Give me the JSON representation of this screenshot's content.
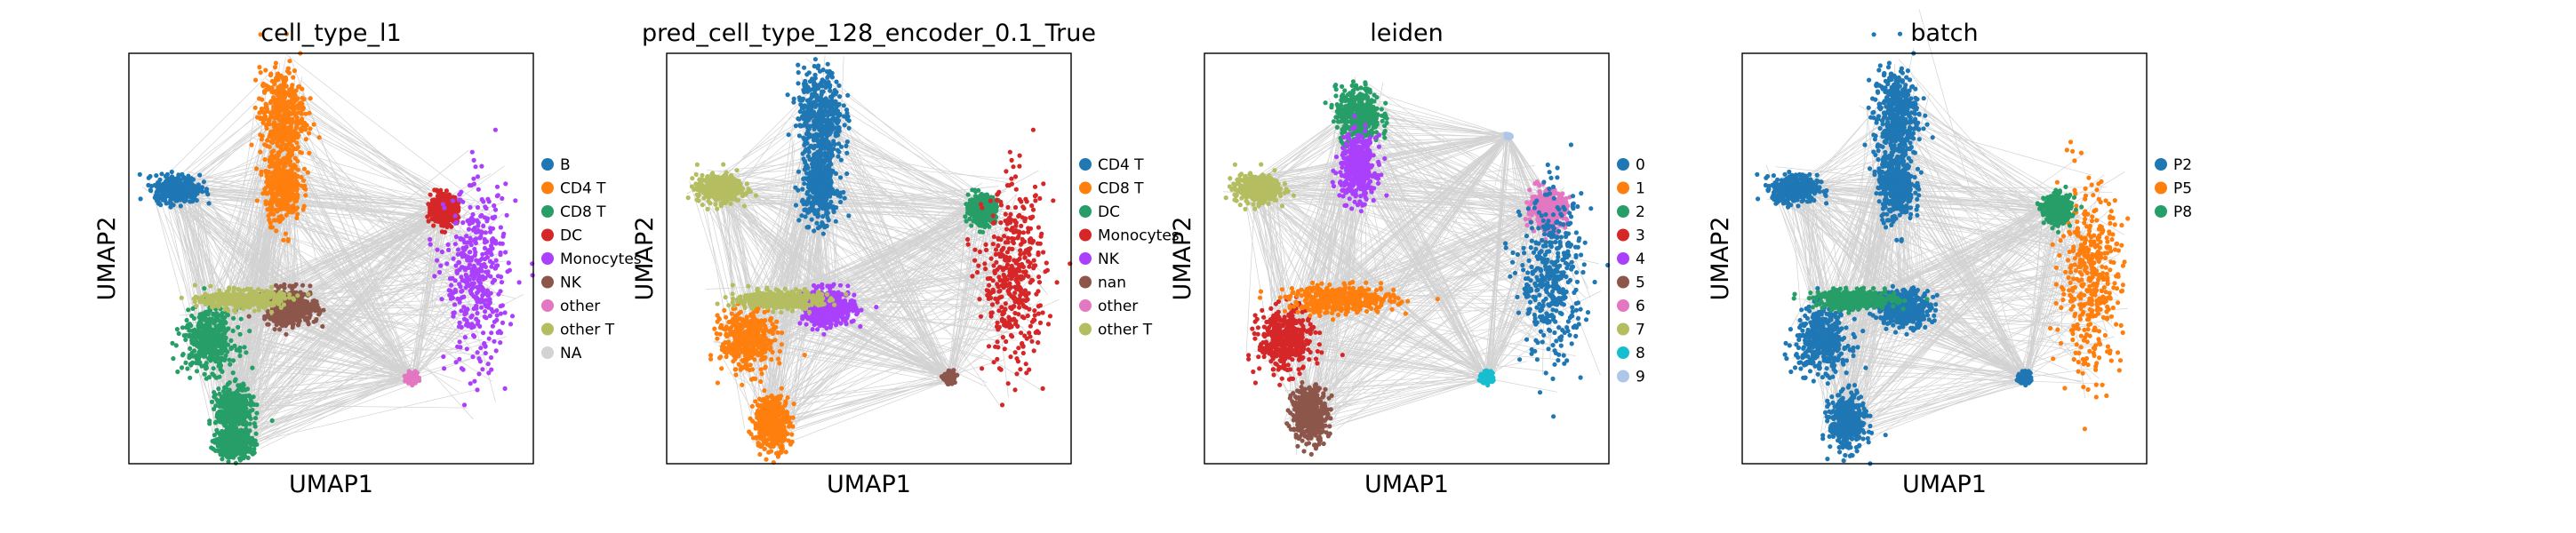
{
  "figure": {
    "background": "#ffffff"
  },
  "chart_data": [
    {
      "type": "scatter",
      "title": "cell_type_l1",
      "xlabel": "UMAP1",
      "ylabel": "UMAP2",
      "grid": false,
      "legend_position": "right",
      "legend": [
        {
          "label": "B",
          "color": "#1f77b4"
        },
        {
          "label": "CD4 T",
          "color": "#ff7f0e"
        },
        {
          "label": "CD8 T",
          "color": "#279e68"
        },
        {
          "label": "DC",
          "color": "#d62728"
        },
        {
          "label": "Monocytes",
          "color": "#aa40fc"
        },
        {
          "label": "NK",
          "color": "#8c564b"
        },
        {
          "label": "other",
          "color": "#e377c2"
        },
        {
          "label": "other T",
          "color": "#b5bd61"
        },
        {
          "label": "NA",
          "color": "#d3d3d3"
        }
      ],
      "clusters": [
        {
          "label": "B",
          "center": [
            0.12,
            0.67
          ],
          "spread": [
            0.05,
            0.03
          ]
        },
        {
          "label": "CD4 T",
          "center": [
            0.38,
            0.85
          ],
          "spread": [
            0.05,
            0.1
          ]
        },
        {
          "label": "CD4 T",
          "center": [
            0.38,
            0.68
          ],
          "spread": [
            0.04,
            0.08
          ]
        },
        {
          "label": "CD8 T",
          "center": [
            0.2,
            0.3
          ],
          "spread": [
            0.06,
            0.07
          ]
        },
        {
          "label": "CD8 T",
          "center": [
            0.26,
            0.13
          ],
          "spread": [
            0.04,
            0.05
          ]
        },
        {
          "label": "CD8 T",
          "center": [
            0.26,
            0.05
          ],
          "spread": [
            0.04,
            0.03
          ]
        },
        {
          "label": "DC",
          "center": [
            0.78,
            0.62
          ],
          "spread": [
            0.03,
            0.03
          ]
        },
        {
          "label": "Monocytes",
          "center": [
            0.86,
            0.45
          ],
          "spread": [
            0.07,
            0.2
          ]
        },
        {
          "label": "NK",
          "center": [
            0.4,
            0.38
          ],
          "spread": [
            0.06,
            0.04
          ]
        },
        {
          "label": "other",
          "center": [
            0.7,
            0.21
          ],
          "spread": [
            0.012,
            0.012
          ]
        },
        {
          "label": "other T",
          "center": [
            0.28,
            0.4
          ],
          "spread": [
            0.09,
            0.02
          ]
        }
      ]
    },
    {
      "type": "scatter",
      "title": "pred_cell_type_128_encoder_0.1_True",
      "xlabel": "UMAP1",
      "ylabel": "UMAP2",
      "grid": false,
      "legend_position": "right",
      "legend": [
        {
          "label": "CD4 T",
          "color": "#1f77b4"
        },
        {
          "label": "CD8 T",
          "color": "#ff7f0e"
        },
        {
          "label": "DC",
          "color": "#279e68"
        },
        {
          "label": "Monocytes",
          "color": "#d62728"
        },
        {
          "label": "NK",
          "color": "#aa40fc"
        },
        {
          "label": "nan",
          "color": "#8c564b"
        },
        {
          "label": "other",
          "color": "#e377c2"
        },
        {
          "label": "other T",
          "color": "#b5bd61"
        }
      ],
      "clusters": [
        {
          "label": "other T",
          "center": [
            0.13,
            0.67
          ],
          "spread": [
            0.05,
            0.03
          ]
        },
        {
          "label": "CD4 T",
          "center": [
            0.38,
            0.85
          ],
          "spread": [
            0.05,
            0.1
          ]
        },
        {
          "label": "CD4 T",
          "center": [
            0.38,
            0.68
          ],
          "spread": [
            0.04,
            0.08
          ]
        },
        {
          "label": "CD8 T",
          "center": [
            0.2,
            0.3
          ],
          "spread": [
            0.06,
            0.07
          ]
        },
        {
          "label": "CD8 T",
          "center": [
            0.26,
            0.1
          ],
          "spread": [
            0.04,
            0.06
          ]
        },
        {
          "label": "DC",
          "center": [
            0.78,
            0.62
          ],
          "spread": [
            0.03,
            0.03
          ]
        },
        {
          "label": "Monocytes",
          "center": [
            0.86,
            0.45
          ],
          "spread": [
            0.07,
            0.2
          ]
        },
        {
          "label": "NK",
          "center": [
            0.4,
            0.38
          ],
          "spread": [
            0.06,
            0.04
          ]
        },
        {
          "label": "other T",
          "center": [
            0.28,
            0.4
          ],
          "spread": [
            0.09,
            0.02
          ]
        },
        {
          "label": "nan",
          "center": [
            0.7,
            0.21
          ],
          "spread": [
            0.012,
            0.012
          ]
        }
      ]
    },
    {
      "type": "scatter",
      "title": "leiden",
      "xlabel": "UMAP1",
      "ylabel": "UMAP2",
      "grid": false,
      "legend_position": "right",
      "legend": [
        {
          "label": "0",
          "color": "#1f77b4"
        },
        {
          "label": "1",
          "color": "#ff7f0e"
        },
        {
          "label": "2",
          "color": "#279e68"
        },
        {
          "label": "3",
          "color": "#d62728"
        },
        {
          "label": "4",
          "color": "#aa40fc"
        },
        {
          "label": "5",
          "color": "#8c564b"
        },
        {
          "label": "6",
          "color": "#e377c2"
        },
        {
          "label": "7",
          "color": "#b5bd61"
        },
        {
          "label": "8",
          "color": "#17becf"
        },
        {
          "label": "9",
          "color": "#aec7e8"
        }
      ],
      "clusters": [
        {
          "label": "7",
          "center": [
            0.13,
            0.67
          ],
          "spread": [
            0.05,
            0.03
          ]
        },
        {
          "label": "2",
          "center": [
            0.38,
            0.85
          ],
          "spread": [
            0.05,
            0.06
          ]
        },
        {
          "label": "4",
          "center": [
            0.38,
            0.72
          ],
          "spread": [
            0.04,
            0.07
          ]
        },
        {
          "label": "3",
          "center": [
            0.2,
            0.3
          ],
          "spread": [
            0.06,
            0.07
          ]
        },
        {
          "label": "5",
          "center": [
            0.26,
            0.12
          ],
          "spread": [
            0.04,
            0.06
          ]
        },
        {
          "label": "6",
          "center": [
            0.85,
            0.62
          ],
          "spread": [
            0.04,
            0.04
          ]
        },
        {
          "label": "0",
          "center": [
            0.86,
            0.45
          ],
          "spread": [
            0.07,
            0.18
          ]
        },
        {
          "label": "1",
          "center": [
            0.34,
            0.4
          ],
          "spread": [
            0.12,
            0.03
          ]
        },
        {
          "label": "8",
          "center": [
            0.7,
            0.21
          ],
          "spread": [
            0.012,
            0.012
          ]
        },
        {
          "label": "9",
          "center": [
            0.75,
            0.8
          ],
          "spread": [
            0.006,
            0.006
          ]
        }
      ]
    },
    {
      "type": "scatter",
      "title": "batch",
      "xlabel": "UMAP1",
      "ylabel": "UMAP2",
      "grid": false,
      "legend_position": "right",
      "legend": [
        {
          "label": "P2",
          "color": "#1f77b4"
        },
        {
          "label": "P5",
          "color": "#ff7f0e"
        },
        {
          "label": "P8",
          "color": "#279e68"
        }
      ],
      "clusters": [
        {
          "label": "P2",
          "center": [
            0.13,
            0.67
          ],
          "spread": [
            0.05,
            0.03
          ]
        },
        {
          "label": "P2",
          "center": [
            0.38,
            0.85
          ],
          "spread": [
            0.05,
            0.1
          ]
        },
        {
          "label": "P2",
          "center": [
            0.38,
            0.68
          ],
          "spread": [
            0.04,
            0.08
          ]
        },
        {
          "label": "P2",
          "center": [
            0.2,
            0.3
          ],
          "spread": [
            0.06,
            0.07
          ]
        },
        {
          "label": "P2",
          "center": [
            0.26,
            0.1
          ],
          "spread": [
            0.04,
            0.06
          ]
        },
        {
          "label": "P2",
          "center": [
            0.4,
            0.38
          ],
          "spread": [
            0.06,
            0.04
          ]
        },
        {
          "label": "P5",
          "center": [
            0.86,
            0.45
          ],
          "spread": [
            0.07,
            0.2
          ]
        },
        {
          "label": "P8",
          "center": [
            0.78,
            0.62
          ],
          "spread": [
            0.03,
            0.03
          ]
        },
        {
          "label": "P8",
          "center": [
            0.28,
            0.4
          ],
          "spread": [
            0.09,
            0.02
          ]
        },
        {
          "label": "P2",
          "center": [
            0.7,
            0.21
          ],
          "spread": [
            0.012,
            0.012
          ]
        }
      ]
    }
  ]
}
